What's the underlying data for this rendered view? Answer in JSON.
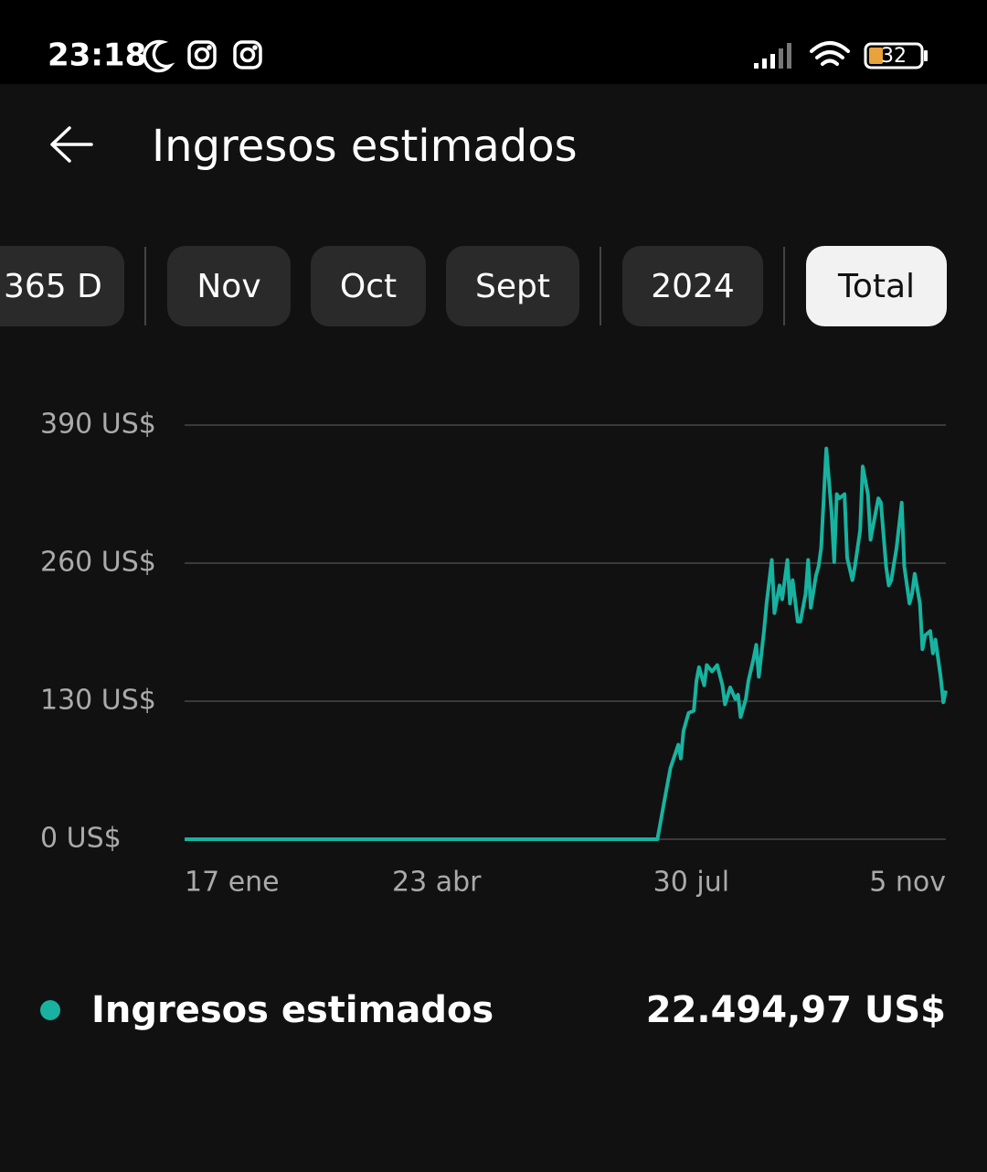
{
  "status_bar": {
    "time": "23:18",
    "battery": "32"
  },
  "header": {
    "title": "Ingresos estimados"
  },
  "tabs": {
    "items": [
      "365 D",
      "Nov",
      "Oct",
      "Sept",
      "2024",
      "Total"
    ],
    "selected_index": 5
  },
  "chart_data": {
    "type": "line",
    "xlim": [
      0,
      293
    ],
    "xticks": [
      {
        "value": 0,
        "label": "17 ene"
      },
      {
        "value": 97,
        "label": "23 abr"
      },
      {
        "value": 195,
        "label": "30 jul"
      },
      {
        "value": 293,
        "label": "5 nov"
      }
    ],
    "ylim": [
      0,
      390
    ],
    "yticks": [
      {
        "value": 0,
        "label": "0 US$"
      },
      {
        "value": 130,
        "label": "130 US$"
      },
      {
        "value": 260,
        "label": "260 US$"
      },
      {
        "value": 390,
        "label": "390 US$"
      }
    ],
    "grid": true,
    "series": [
      {
        "name": "Ingresos estimados",
        "color": "#17b3a0",
        "x": [
          0,
          182,
          185,
          187,
          190,
          191,
          192,
          194,
          196,
          197,
          198,
          200,
          201,
          203,
          205,
          207,
          208,
          210,
          212,
          213,
          214,
          216,
          217,
          219,
          220,
          221,
          223,
          224,
          226,
          227,
          229,
          230,
          232,
          233,
          234,
          236,
          237,
          239,
          240,
          241,
          243,
          244,
          245,
          247,
          249,
          250,
          251,
          252,
          254,
          255,
          257,
          258,
          260,
          261,
          263,
          264,
          265,
          267,
          268,
          270,
          271,
          272,
          274,
          276,
          277,
          279,
          280,
          281,
          283,
          284,
          285,
          287,
          288,
          289,
          291,
          292,
          293
        ],
        "values": [
          0,
          0,
          41,
          67,
          89,
          76,
          102,
          119,
          121,
          149,
          162,
          145,
          164,
          158,
          164,
          145,
          127,
          143,
          132,
          136,
          115,
          132,
          149,
          170,
          183,
          153,
          196,
          222,
          263,
          213,
          239,
          226,
          263,
          222,
          244,
          205,
          205,
          231,
          263,
          218,
          248,
          257,
          274,
          368,
          308,
          261,
          325,
          321,
          325,
          265,
          244,
          257,
          291,
          351,
          325,
          282,
          295,
          321,
          317,
          257,
          239,
          244,
          274,
          317,
          257,
          222,
          231,
          250,
          222,
          179,
          192,
          196,
          175,
          188,
          153,
          129,
          140
        ]
      }
    ],
    "total": "22.494,97 US$"
  }
}
